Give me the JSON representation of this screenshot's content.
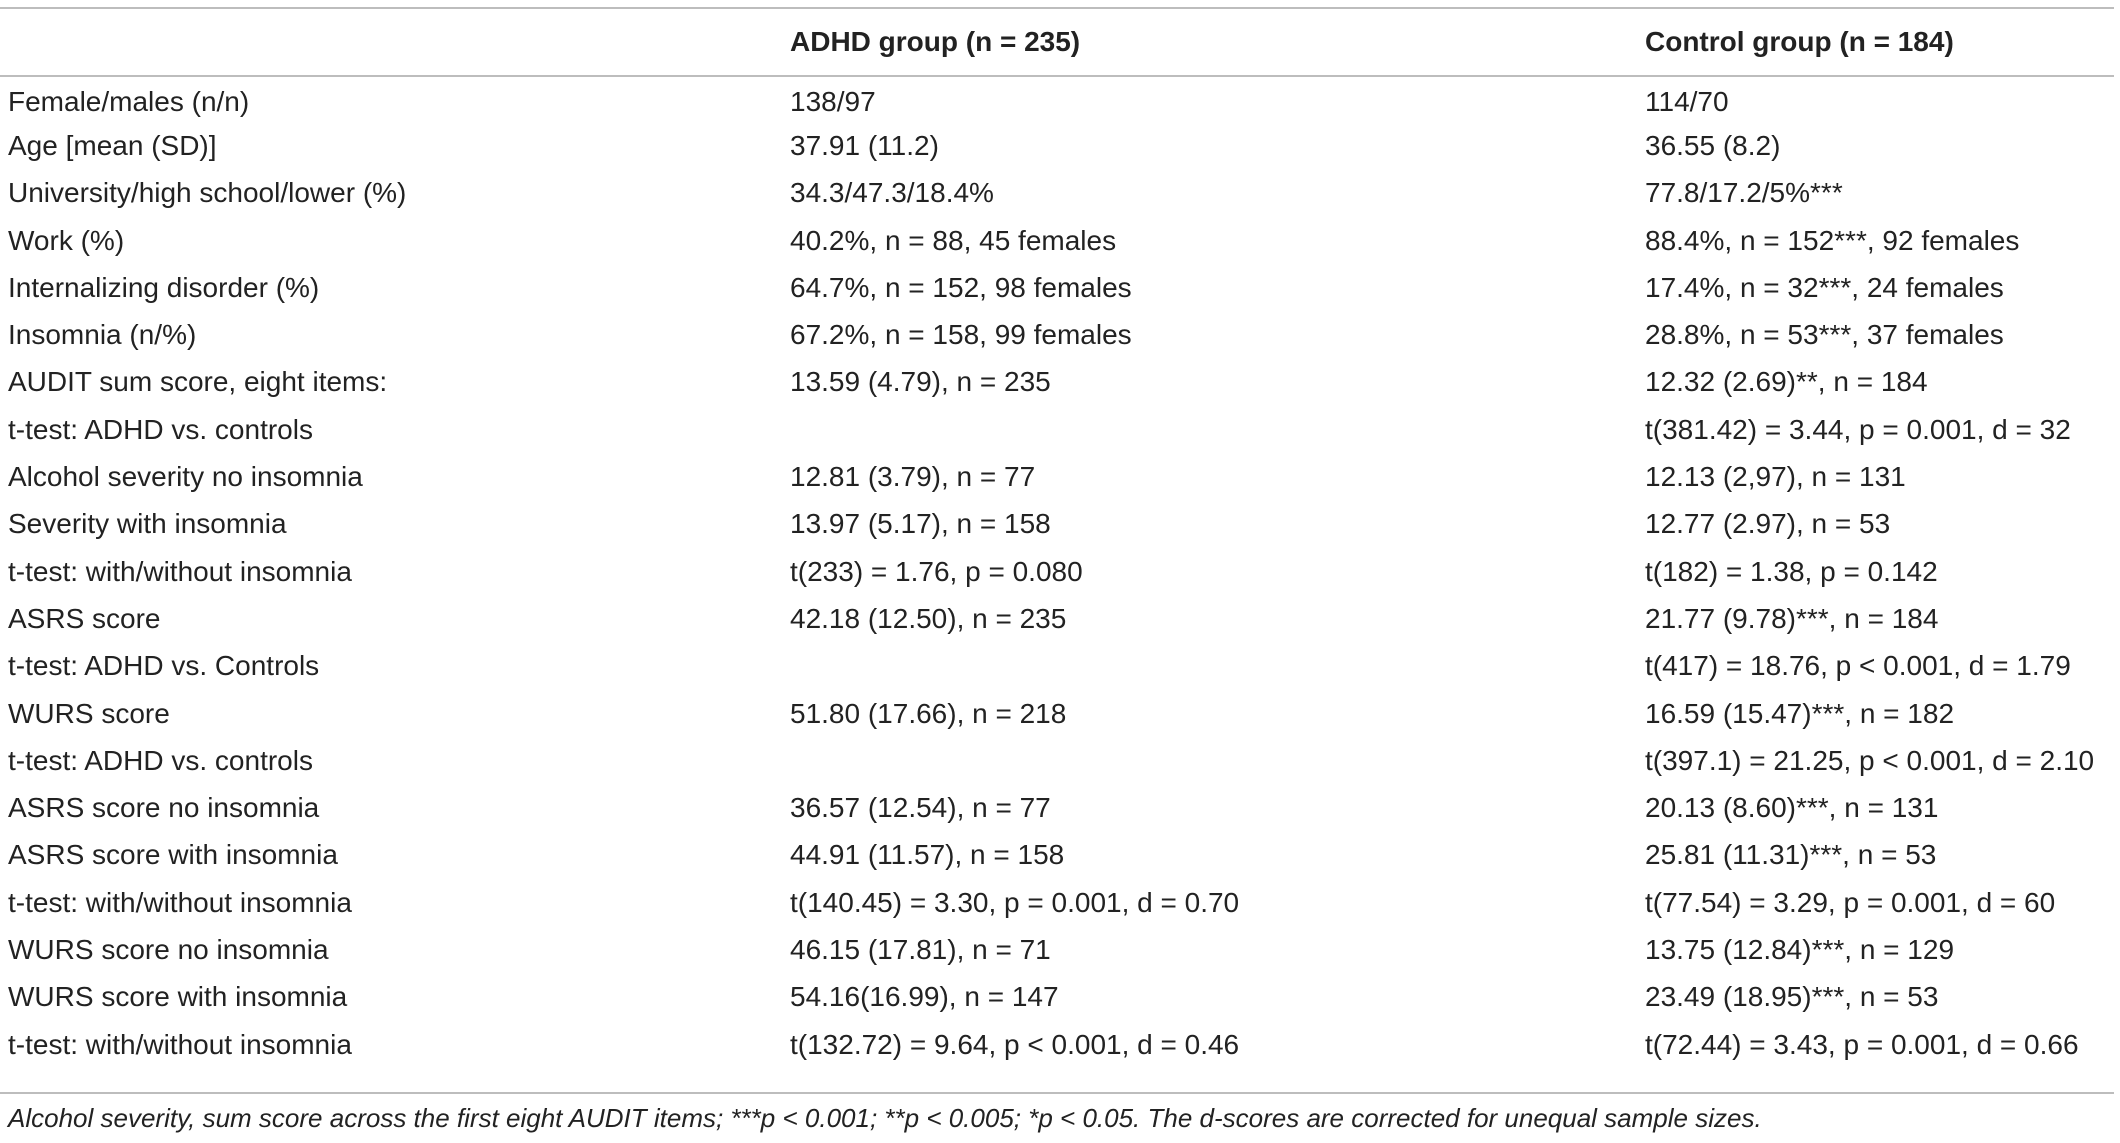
{
  "table": {
    "headers": [
      "",
      "ADHD group (n = 235)",
      "Control group (n = 184)"
    ],
    "rows": [
      [
        "Female/males (n/n)",
        "138/97",
        "114/70"
      ],
      [
        "Age [mean (SD)]",
        "37.91 (11.2)",
        "36.55 (8.2)"
      ],
      [
        "University/high school/lower (%)",
        "34.3/47.3/18.4%",
        "77.8/17.2/5%***"
      ],
      [
        "Work (%)",
        "40.2%, n = 88, 45 females",
        "88.4%, n = 152***, 92 females"
      ],
      [
        "Internalizing disorder (%)",
        "64.7%, n = 152, 98 females",
        "17.4%, n = 32***, 24 females"
      ],
      [
        "Insomnia (n/%)",
        "67.2%, n = 158, 99 females",
        "28.8%, n = 53***, 37 females"
      ],
      [
        "AUDIT sum score, eight items:",
        "13.59 (4.79), n = 235",
        "12.32 (2.69)**, n = 184"
      ],
      [
        "t-test: ADHD vs. controls",
        "",
        "t(381.42) = 3.44, p = 0.001, d = 32"
      ],
      [
        "Alcohol severity no insomnia",
        "12.81 (3.79), n = 77",
        "12.13 (2,97), n = 131"
      ],
      [
        "Severity with insomnia",
        "13.97 (5.17), n = 158",
        "12.77 (2.97), n = 53"
      ],
      [
        "t-test: with/without insomnia",
        "t(233) = 1.76, p = 0.080",
        "t(182) = 1.38, p = 0.142"
      ],
      [
        "ASRS score",
        "42.18 (12.50), n = 235",
        "21.77 (9.78)***, n = 184"
      ],
      [
        "t-test: ADHD vs. Controls",
        "",
        "t(417) = 18.76, p < 0.001, d = 1.79"
      ],
      [
        "WURS score",
        "51.80 (17.66), n = 218",
        "16.59 (15.47)***, n = 182"
      ],
      [
        "t-test: ADHD vs. controls",
        "",
        "t(397.1) = 21.25, p < 0.001, d = 2.10"
      ],
      [
        "ASRS score no insomnia",
        "36.57 (12.54), n = 77",
        "20.13 (8.60)***, n = 131"
      ],
      [
        "ASRS score with insomnia",
        "44.91 (11.57), n = 158",
        "25.81 (11.31)***, n = 53"
      ],
      [
        "t-test: with/without insomnia",
        "t(140.45) = 3.30, p = 0.001, d = 0.70",
        "t(77.54) = 3.29, p = 0.001, d = 60"
      ],
      [
        "WURS score no insomnia",
        "46.15 (17.81), n = 71",
        "13.75 (12.84)***, n = 129"
      ],
      [
        "WURS score with insomnia",
        "54.16(16.99), n = 147",
        "23.49 (18.95)***, n = 53"
      ],
      [
        "t-test: with/without insomnia",
        "t(132.72) = 9.64, p < 0.001, d = 0.46",
        "t(72.44) = 3.43, p = 0.001, d = 0.66"
      ]
    ]
  },
  "footnote": "Alcohol severity, sum score across the first eight AUDIT items; ***p < 0.001; **p < 0.005; *p < 0.05. The d-scores are corrected for unequal sample sizes."
}
